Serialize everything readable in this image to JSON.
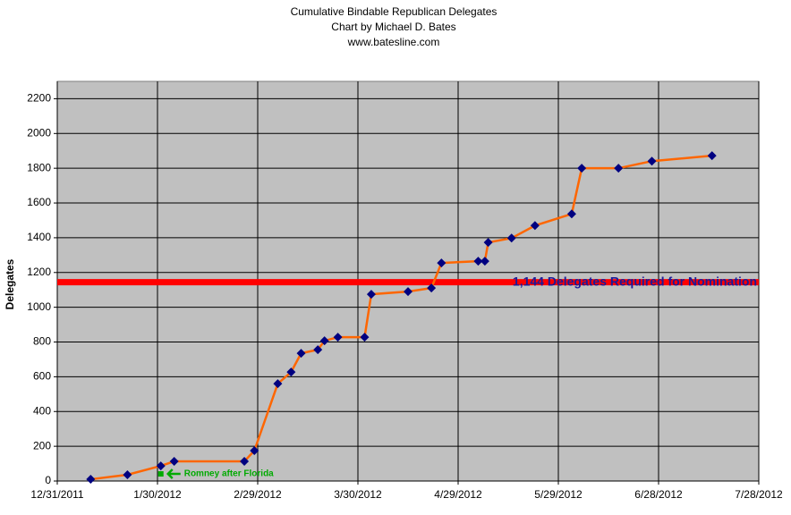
{
  "chart_data": {
    "type": "line",
    "title": "Cumulative Bindable Republican Delegates",
    "subtitle": [
      "Chart by Michael D. Bates",
      "www.batesline.com"
    ],
    "y_label": "Delegates",
    "x": [
      "2012-01-10",
      "2012-01-21",
      "2012-01-31",
      "2012-02-04",
      "2012-02-25",
      "2012-02-28",
      "2012-03-06",
      "2012-03-10",
      "2012-03-13",
      "2012-03-18",
      "2012-03-20",
      "2012-03-24",
      "2012-04-01",
      "2012-04-03",
      "2012-04-14",
      "2012-04-21",
      "2012-04-24",
      "2012-05-05",
      "2012-05-07",
      "2012-05-08",
      "2012-05-15",
      "2012-05-22",
      "2012-06-02",
      "2012-06-05",
      "2012-06-16",
      "2012-06-26",
      "2012-07-14"
    ],
    "series": [
      {
        "color": "#ff6600",
        "marker_color": "#000080",
        "values": [
          10,
          36,
          87,
          113,
          113,
          175,
          560,
          627,
          735,
          756,
          807,
          828,
          828,
          1075,
          1090,
          1111,
          1255,
          1265,
          1265,
          1373,
          1398,
          1470,
          1537,
          1800,
          1800,
          1841,
          1872
        ]
      },
      {
        "name": "Romney after Florida",
        "color": "#00aa00",
        "x": [
          "2012-01-31"
        ],
        "values": [
          41
        ]
      }
    ],
    "hlines": [
      {
        "value": 1144,
        "label": "1,144 Delegates Required for Nomination",
        "color": "#ff0000",
        "label_color": "#1a1a9a"
      }
    ],
    "xlim": [
      "2011-12-31",
      "2012-07-28"
    ],
    "xticks": [
      {
        "value": "2011-12-31",
        "label": "12/31/2011"
      },
      {
        "value": "2012-01-30",
        "label": "1/30/2012"
      },
      {
        "value": "2012-02-29",
        "label": "2/29/2012"
      },
      {
        "value": "2012-03-30",
        "label": "3/30/2012"
      },
      {
        "value": "2012-04-29",
        "label": "4/29/2012"
      },
      {
        "value": "2012-05-29",
        "label": "5/29/2012"
      },
      {
        "value": "2012-06-28",
        "label": "6/28/2012"
      },
      {
        "value": "2012-07-28",
        "label": "7/28/2012"
      }
    ],
    "ylim": [
      0,
      2300
    ],
    "yticks": [
      0,
      200,
      400,
      600,
      800,
      1000,
      1200,
      1400,
      1600,
      1800,
      2000,
      2200
    ],
    "grid": true,
    "plot_background": "#c0c0c0"
  }
}
